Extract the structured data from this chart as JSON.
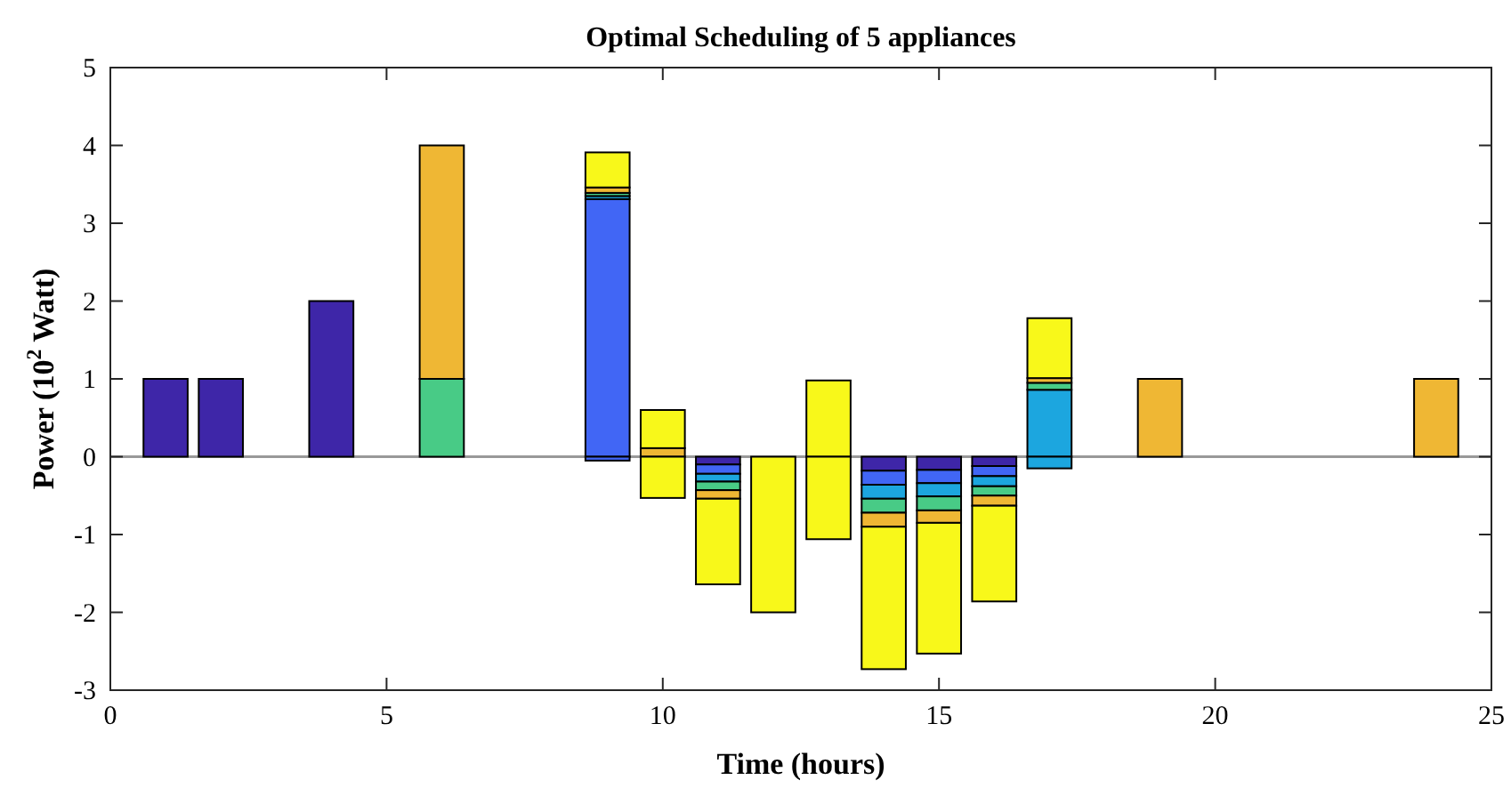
{
  "chart_data": {
    "type": "bar",
    "stacked": true,
    "title": "Optimal Scheduling of 5 appliances",
    "xlabel": "Time (hours)",
    "ylabel": "Power (10$^{2}$ Watt)",
    "x": [
      1,
      2,
      3,
      4,
      5,
      6,
      7,
      8,
      9,
      10,
      11,
      12,
      13,
      14,
      15,
      16,
      17,
      18,
      19,
      20,
      21,
      22,
      23,
      24
    ],
    "xlim": [
      0,
      25
    ],
    "xticks": [
      0,
      5,
      10,
      15,
      20,
      25
    ],
    "ylim": [
      -3,
      5
    ],
    "yticks": [
      -3,
      -2,
      -1,
      0,
      1,
      2,
      3,
      4,
      5
    ],
    "ref_lines": [
      {
        "axis": "y",
        "value": 0,
        "color": "#999999"
      }
    ],
    "series": [
      {
        "color": "#3e26a8",
        "values": [
          1,
          1,
          0,
          2,
          0,
          null,
          0,
          0,
          null,
          null,
          -0.1,
          null,
          null,
          -0.18,
          -0.17,
          -0.12,
          null,
          0,
          null,
          0,
          0,
          0,
          0,
          null
        ]
      },
      {
        "color": "#4166f5",
        "values": [
          null,
          null,
          null,
          null,
          null,
          null,
          null,
          null,
          3.31,
          null,
          -0.12,
          null,
          null,
          -0.18,
          -0.17,
          -0.13,
          null,
          null,
          null,
          null,
          null,
          null,
          null,
          null
        ]
      },
      {
        "color": "#1ca6df",
        "values": [
          null,
          null,
          null,
          null,
          null,
          null,
          null,
          null,
          0.04,
          null,
          -0.1,
          null,
          null,
          -0.18,
          -0.17,
          -0.13,
          0.86,
          null,
          null,
          null,
          null,
          null,
          null,
          null
        ]
      },
      {
        "color": "#48cb86",
        "values": [
          null,
          null,
          null,
          null,
          null,
          1,
          null,
          null,
          0.04,
          null,
          -0.11,
          null,
          null,
          -0.18,
          -0.18,
          -0.12,
          0.09,
          null,
          null,
          null,
          null,
          null,
          null,
          null
        ]
      },
      {
        "color": "#efb734",
        "values": [
          null,
          null,
          null,
          null,
          null,
          3,
          null,
          null,
          0.07,
          0.11,
          -0.11,
          null,
          null,
          -0.18,
          -0.16,
          -0.13,
          0.06,
          null,
          1,
          null,
          null,
          null,
          null,
          1
        ]
      },
      {
        "color": "#f8f81a",
        "values": [
          null,
          null,
          null,
          null,
          null,
          null,
          null,
          null,
          0.45,
          0.49,
          null,
          null,
          0.98,
          null,
          null,
          null,
          0.77,
          null,
          null,
          null,
          null,
          null,
          null,
          null
        ]
      },
      {
        "color": "#4166f5",
        "values": [
          null,
          null,
          null,
          null,
          null,
          null,
          null,
          null,
          -0.05,
          null,
          null,
          null,
          null,
          null,
          null,
          null,
          null,
          null,
          null,
          null,
          null,
          null,
          null,
          null
        ]
      },
      {
        "color": "#1ca6df",
        "values": [
          null,
          null,
          null,
          null,
          null,
          null,
          null,
          null,
          null,
          null,
          null,
          null,
          null,
          null,
          null,
          null,
          -0.15,
          null,
          null,
          null,
          null,
          null,
          null,
          null
        ]
      },
      {
        "color": "#f8f81a",
        "values": [
          null,
          null,
          null,
          null,
          null,
          null,
          null,
          null,
          null,
          -0.53,
          -1.1,
          -2.0,
          -1.06,
          -1.83,
          -1.68,
          -1.23,
          null,
          null,
          null,
          null,
          null,
          null,
          null,
          null
        ]
      }
    ]
  }
}
